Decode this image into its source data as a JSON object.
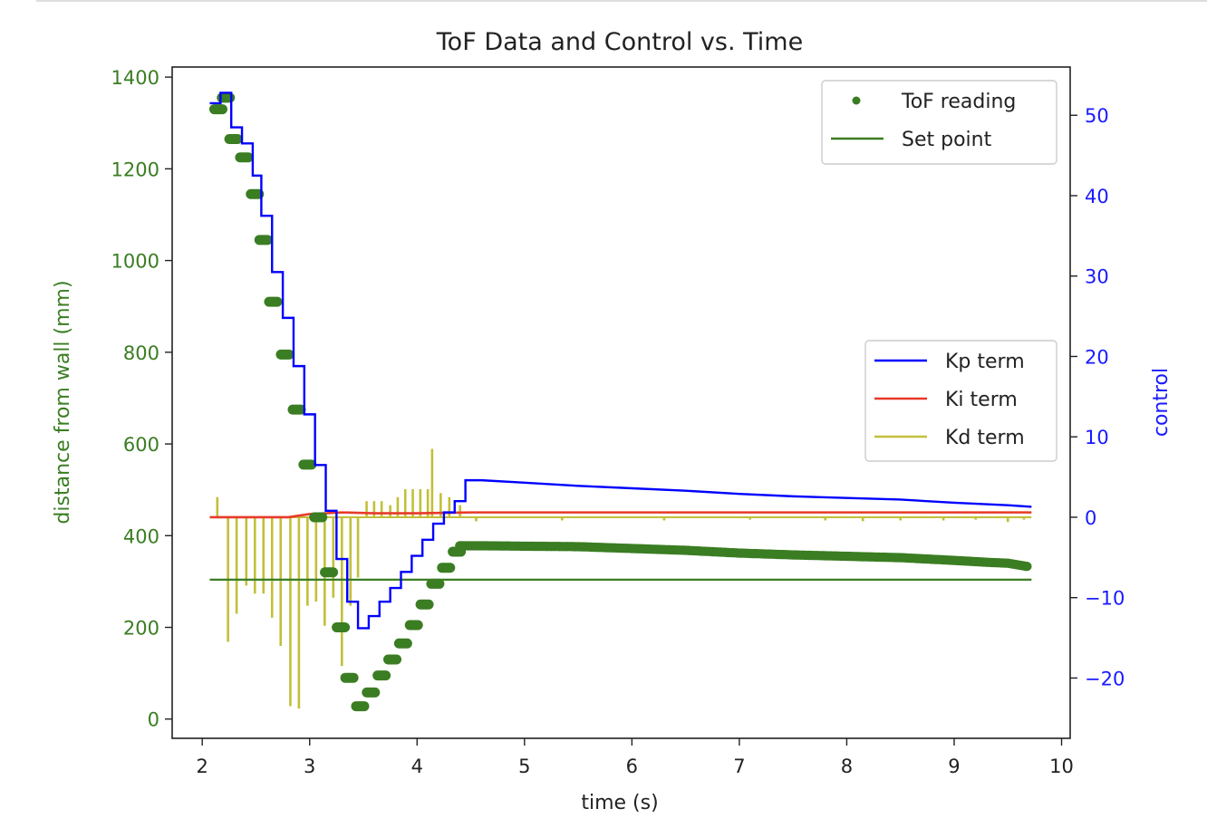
{
  "chart_data": {
    "type": "line",
    "title": "ToF Data and Control vs. Time",
    "xlabel": "time (s)",
    "ylabel_left": "distance from wall (mm)",
    "ylabel_right": "control",
    "xlim": [
      1.72,
      10.08
    ],
    "ylim_left": [
      -42,
      1422
    ],
    "ylim_right": [
      -27.5,
      56
    ],
    "x_ticks": [
      "2",
      "3",
      "4",
      "5",
      "6",
      "7",
      "8",
      "9",
      "10"
    ],
    "y_left_ticks": [
      "0",
      "200",
      "400",
      "600",
      "800",
      "1000",
      "1200",
      "1400"
    ],
    "y_right_ticks": [
      "−20",
      "−10",
      "0",
      "10",
      "20",
      "30",
      "40",
      "50"
    ],
    "grid": false,
    "colors": {
      "tof": "#3a7d22",
      "setpoint": "#3a7d22",
      "kp": "#0000ff",
      "ki": "#e83a2a",
      "kd": "#c2bf3a",
      "left_axis_text": "#3a7d22",
      "right_axis_text": "#1a1aff"
    },
    "legends": [
      {
        "placement": "upper-right",
        "entries": [
          {
            "label": "ToF reading",
            "marker": "dot",
            "color": "#3a7d22"
          },
          {
            "label": "Set point",
            "marker": "line",
            "color": "#3a7d22"
          }
        ]
      },
      {
        "placement": "center-right",
        "entries": [
          {
            "label": "Kp term",
            "marker": "line",
            "color": "#0000ff"
          },
          {
            "label": "Ki term",
            "marker": "line",
            "color": "#e83a2a"
          },
          {
            "label": "Kd term",
            "marker": "line",
            "color": "#c2bf3a"
          }
        ]
      }
    ],
    "series": [
      {
        "name": "ToF reading",
        "axis": "left",
        "style": "scatter-clusters",
        "points": [
          [
            2.15,
            1330
          ],
          [
            2.22,
            1355
          ],
          [
            2.29,
            1265
          ],
          [
            2.39,
            1225
          ],
          [
            2.49,
            1145
          ],
          [
            2.57,
            1045
          ],
          [
            2.66,
            910
          ],
          [
            2.77,
            795
          ],
          [
            2.88,
            675
          ],
          [
            2.98,
            555
          ],
          [
            3.08,
            440
          ],
          [
            3.18,
            320
          ],
          [
            3.29,
            200
          ],
          [
            3.37,
            90
          ],
          [
            3.47,
            28
          ],
          [
            3.57,
            58
          ],
          [
            3.67,
            95
          ],
          [
            3.77,
            130
          ],
          [
            3.87,
            165
          ],
          [
            3.97,
            205
          ],
          [
            4.07,
            250
          ],
          [
            4.17,
            295
          ],
          [
            4.27,
            330
          ],
          [
            4.37,
            365
          ]
        ]
      },
      {
        "name": "ToF reading",
        "axis": "left",
        "style": "dense",
        "points": [
          [
            4.4,
            378
          ],
          [
            4.6,
            378
          ],
          [
            5.0,
            377
          ],
          [
            5.5,
            376
          ],
          [
            6.0,
            372
          ],
          [
            6.5,
            368
          ],
          [
            7.0,
            362
          ],
          [
            7.5,
            358
          ],
          [
            8.0,
            355
          ],
          [
            8.5,
            352
          ],
          [
            9.0,
            346
          ],
          [
            9.3,
            342
          ],
          [
            9.5,
            340
          ],
          [
            9.7,
            332
          ]
        ]
      },
      {
        "name": "Set point",
        "axis": "left",
        "points": [
          [
            2.07,
            304
          ],
          [
            9.72,
            304
          ]
        ]
      },
      {
        "name": "Kp term",
        "axis": "right",
        "style": "step",
        "points": [
          [
            2.07,
            51.5
          ],
          [
            2.17,
            51.5
          ],
          [
            2.17,
            52.8
          ],
          [
            2.27,
            52.8
          ],
          [
            2.27,
            48.5
          ],
          [
            2.37,
            48.5
          ],
          [
            2.37,
            46.5
          ],
          [
            2.47,
            46.5
          ],
          [
            2.47,
            42.5
          ],
          [
            2.55,
            42.5
          ],
          [
            2.55,
            37.5
          ],
          [
            2.65,
            37.5
          ],
          [
            2.65,
            30.5
          ],
          [
            2.75,
            30.5
          ],
          [
            2.75,
            24.8
          ],
          [
            2.85,
            24.8
          ],
          [
            2.85,
            18.8
          ],
          [
            2.95,
            18.8
          ],
          [
            2.95,
            12.8
          ],
          [
            3.05,
            12.8
          ],
          [
            3.05,
            6.5
          ],
          [
            3.15,
            6.5
          ],
          [
            3.15,
            0.8
          ],
          [
            3.25,
            0.8
          ],
          [
            3.25,
            -5.2
          ],
          [
            3.35,
            -5.2
          ],
          [
            3.35,
            -10.5
          ],
          [
            3.45,
            -10.5
          ],
          [
            3.45,
            -13.8
          ],
          [
            3.55,
            -13.8
          ],
          [
            3.55,
            -12.3
          ],
          [
            3.65,
            -12.3
          ],
          [
            3.65,
            -10.5
          ],
          [
            3.75,
            -10.5
          ],
          [
            3.75,
            -8.8
          ],
          [
            3.85,
            -8.8
          ],
          [
            3.85,
            -6.8
          ],
          [
            3.95,
            -6.8
          ],
          [
            3.95,
            -4.8
          ],
          [
            4.05,
            -4.8
          ],
          [
            4.05,
            -2.8
          ],
          [
            4.15,
            -2.8
          ],
          [
            4.15,
            -0.8
          ],
          [
            4.25,
            -0.8
          ],
          [
            4.25,
            0.6
          ],
          [
            4.35,
            0.6
          ],
          [
            4.35,
            2.0
          ],
          [
            4.45,
            2.0
          ],
          [
            4.45,
            4.6
          ],
          [
            4.6,
            4.6
          ],
          [
            5.0,
            4.3
          ],
          [
            5.5,
            3.9
          ],
          [
            6.0,
            3.6
          ],
          [
            6.5,
            3.3
          ],
          [
            7.0,
            2.9
          ],
          [
            7.5,
            2.6
          ],
          [
            8.0,
            2.4
          ],
          [
            8.5,
            2.2
          ],
          [
            9.0,
            1.8
          ],
          [
            9.5,
            1.5
          ],
          [
            9.72,
            1.3
          ]
        ]
      },
      {
        "name": "Ki term",
        "axis": "right",
        "points": [
          [
            2.07,
            0
          ],
          [
            2.8,
            0
          ],
          [
            3.0,
            0.4
          ],
          [
            3.3,
            0.6
          ],
          [
            3.6,
            0.5
          ],
          [
            4.0,
            0.5
          ],
          [
            4.5,
            0.6
          ],
          [
            6.0,
            0.6
          ],
          [
            9.72,
            0.6
          ]
        ]
      },
      {
        "name": "Kd term",
        "axis": "right",
        "style": "spikes",
        "baseline": 0,
        "spikes": [
          [
            2.14,
            2.5
          ],
          [
            2.24,
            -15.5
          ],
          [
            2.32,
            -12
          ],
          [
            2.41,
            -8.5
          ],
          [
            2.49,
            -9.5
          ],
          [
            2.57,
            -9.5
          ],
          [
            2.65,
            -12.5
          ],
          [
            2.73,
            -16
          ],
          [
            2.82,
            -23.5
          ],
          [
            2.9,
            -23.8
          ],
          [
            2.98,
            -11
          ],
          [
            3.06,
            -10.5
          ],
          [
            3.14,
            -13.5
          ],
          [
            3.22,
            -10
          ],
          [
            3.3,
            -18.5
          ],
          [
            3.38,
            -11
          ],
          [
            3.45,
            -7.5
          ],
          [
            3.53,
            2
          ],
          [
            3.6,
            2
          ],
          [
            3.67,
            2
          ],
          [
            3.75,
            1.5
          ],
          [
            3.82,
            2.5
          ],
          [
            3.89,
            3.5
          ],
          [
            3.96,
            3.5
          ],
          [
            4.03,
            3.5
          ],
          [
            4.1,
            3.5
          ],
          [
            4.14,
            8.5
          ],
          [
            4.22,
            3
          ],
          [
            4.3,
            2.5
          ],
          [
            4.4,
            1.5
          ],
          [
            4.55,
            -0.5
          ],
          [
            5.35,
            -0.4
          ],
          [
            6.3,
            -0.4
          ],
          [
            7.1,
            -0.3
          ],
          [
            7.8,
            -0.4
          ],
          [
            8.15,
            -0.5
          ],
          [
            8.5,
            -0.4
          ],
          [
            8.9,
            -0.4
          ],
          [
            9.2,
            -0.3
          ],
          [
            9.5,
            -0.6
          ],
          [
            9.65,
            -0.3
          ]
        ]
      }
    ]
  }
}
